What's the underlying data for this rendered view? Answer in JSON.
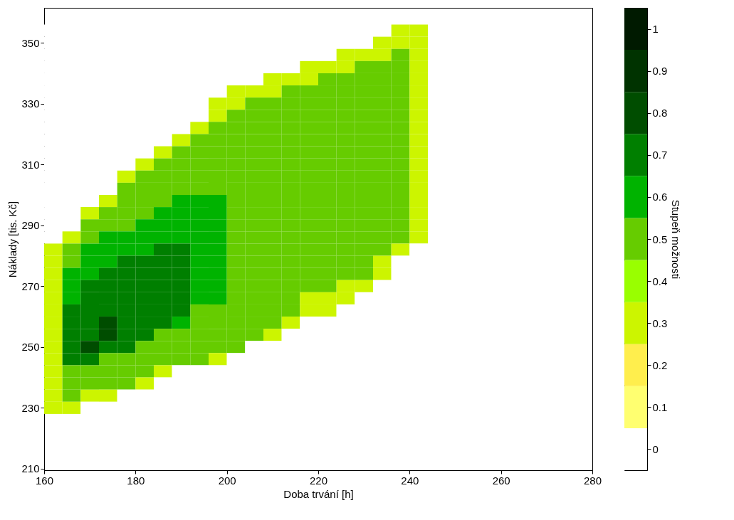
{
  "chart_data": {
    "type": "heatmap",
    "xlabel": "Doba trvání [h]",
    "ylabel": "Náklady [tis. Kč]",
    "clabel": "Stupeň možnosti",
    "x": [
      162,
      166,
      170,
      174,
      178,
      182,
      186,
      190,
      194,
      198,
      202,
      206,
      210,
      214,
      218,
      222,
      226,
      230,
      234,
      238,
      242,
      246
    ],
    "y": [
      354,
      350,
      346,
      342,
      338,
      334,
      330,
      326,
      322,
      318,
      314,
      310,
      306,
      302,
      298,
      294,
      290,
      286,
      282,
      278,
      274,
      270,
      266,
      262,
      258,
      254,
      250,
      246,
      242,
      238,
      234,
      230
    ],
    "cells": [
      [
        0,
        0,
        0,
        0,
        0,
        0,
        0,
        0,
        0,
        0,
        0,
        0,
        0,
        0,
        0,
        0,
        0,
        0,
        0,
        0.3,
        0.3,
        0
      ],
      [
        0,
        0,
        0,
        0,
        0,
        0,
        0,
        0,
        0,
        0,
        0,
        0,
        0,
        0,
        0,
        0,
        0,
        0,
        0.3,
        0.3,
        0.3,
        0
      ],
      [
        0,
        0,
        0,
        0,
        0,
        0,
        0,
        0,
        0,
        0,
        0,
        0,
        0,
        0,
        0,
        0,
        0.3,
        0.3,
        0.3,
        0.5,
        0.3,
        0
      ],
      [
        0,
        0,
        0,
        0,
        0,
        0,
        0,
        0,
        0,
        0,
        0,
        0,
        0,
        0,
        0.3,
        0.3,
        0.3,
        0.5,
        0.5,
        0.5,
        0.3,
        0
      ],
      [
        0,
        0,
        0,
        0,
        0,
        0,
        0,
        0,
        0,
        0,
        0,
        0,
        0.3,
        0.3,
        0.3,
        0.5,
        0.5,
        0.5,
        0.5,
        0.5,
        0.3,
        0
      ],
      [
        0,
        0,
        0,
        0,
        0,
        0,
        0,
        0,
        0,
        0,
        0.3,
        0.3,
        0.3,
        0.5,
        0.5,
        0.5,
        0.5,
        0.5,
        0.5,
        0.5,
        0.3,
        0
      ],
      [
        0,
        0,
        0,
        0,
        0,
        0,
        0,
        0,
        0,
        0.3,
        0.3,
        0.5,
        0.5,
        0.5,
        0.5,
        0.5,
        0.5,
        0.5,
        0.5,
        0.5,
        0.3,
        0
      ],
      [
        0,
        0,
        0,
        0,
        0,
        0,
        0,
        0,
        0,
        0.3,
        0.5,
        0.5,
        0.5,
        0.5,
        0.5,
        0.5,
        0.5,
        0.5,
        0.5,
        0.5,
        0.3,
        0
      ],
      [
        0,
        0,
        0,
        0,
        0,
        0,
        0,
        0,
        0.3,
        0.5,
        0.5,
        0.5,
        0.5,
        0.5,
        0.5,
        0.5,
        0.5,
        0.5,
        0.5,
        0.5,
        0.3,
        0
      ],
      [
        0,
        0,
        0,
        0,
        0,
        0,
        0,
        0.3,
        0.5,
        0.5,
        0.5,
        0.5,
        0.5,
        0.5,
        0.5,
        0.5,
        0.5,
        0.5,
        0.5,
        0.5,
        0.3,
        0
      ],
      [
        0,
        0,
        0,
        0,
        0,
        0,
        0.3,
        0.5,
        0.5,
        0.5,
        0.5,
        0.5,
        0.5,
        0.5,
        0.5,
        0.5,
        0.5,
        0.5,
        0.5,
        0.5,
        0.3,
        0
      ],
      [
        0,
        0,
        0,
        0,
        0,
        0.3,
        0.5,
        0.5,
        0.5,
        0.5,
        0.5,
        0.5,
        0.5,
        0.5,
        0.5,
        0.5,
        0.5,
        0.5,
        0.5,
        0.5,
        0.3,
        0
      ],
      [
        0,
        0,
        0,
        0,
        0.3,
        0.5,
        0.5,
        0.5,
        0.5,
        0.5,
        0.5,
        0.5,
        0.5,
        0.5,
        0.5,
        0.5,
        0.5,
        0.5,
        0.5,
        0.5,
        0.3,
        0
      ],
      [
        0,
        0,
        0,
        0,
        0.5,
        0.5,
        0.5,
        0.5,
        0.5,
        0.5,
        0.5,
        0.5,
        0.5,
        0.5,
        0.5,
        0.5,
        0.5,
        0.5,
        0.5,
        0.5,
        0.3,
        0
      ],
      [
        0,
        0,
        0,
        0.3,
        0.5,
        0.5,
        0.5,
        0.6,
        0.6,
        0.6,
        0.5,
        0.5,
        0.5,
        0.5,
        0.5,
        0.5,
        0.5,
        0.5,
        0.5,
        0.5,
        0.3,
        0
      ],
      [
        0,
        0,
        0.3,
        0.5,
        0.5,
        0.5,
        0.6,
        0.6,
        0.6,
        0.6,
        0.5,
        0.5,
        0.5,
        0.5,
        0.5,
        0.5,
        0.5,
        0.5,
        0.5,
        0.5,
        0.3,
        0
      ],
      [
        0,
        0,
        0.5,
        0.5,
        0.5,
        0.6,
        0.6,
        0.6,
        0.6,
        0.6,
        0.5,
        0.5,
        0.5,
        0.5,
        0.5,
        0.5,
        0.5,
        0.5,
        0.5,
        0.5,
        0.3,
        0
      ],
      [
        0,
        0.3,
        0.5,
        0.6,
        0.6,
        0.6,
        0.6,
        0.6,
        0.6,
        0.6,
        0.5,
        0.5,
        0.5,
        0.5,
        0.5,
        0.5,
        0.5,
        0.5,
        0.5,
        0.5,
        0.3,
        0
      ],
      [
        0.3,
        0.5,
        0.6,
        0.6,
        0.6,
        0.6,
        0.7,
        0.7,
        0.6,
        0.6,
        0.5,
        0.5,
        0.5,
        0.5,
        0.5,
        0.5,
        0.5,
        0.5,
        0.5,
        0.3,
        0,
        0
      ],
      [
        0.3,
        0.5,
        0.6,
        0.6,
        0.7,
        0.7,
        0.7,
        0.7,
        0.6,
        0.6,
        0.5,
        0.5,
        0.5,
        0.5,
        0.5,
        0.5,
        0.5,
        0.5,
        0.3,
        0,
        0,
        0
      ],
      [
        0.3,
        0.6,
        0.6,
        0.7,
        0.7,
        0.7,
        0.7,
        0.7,
        0.6,
        0.6,
        0.5,
        0.5,
        0.5,
        0.5,
        0.5,
        0.5,
        0.5,
        0.5,
        0.3,
        0,
        0,
        0
      ],
      [
        0.3,
        0.6,
        0.7,
        0.7,
        0.7,
        0.7,
        0.7,
        0.7,
        0.6,
        0.6,
        0.5,
        0.5,
        0.5,
        0.5,
        0.5,
        0.5,
        0.3,
        0.3,
        0,
        0,
        0,
        0
      ],
      [
        0.3,
        0.6,
        0.7,
        0.7,
        0.7,
        0.7,
        0.7,
        0.7,
        0.6,
        0.6,
        0.5,
        0.5,
        0.5,
        0.5,
        0.3,
        0.3,
        0.3,
        0,
        0,
        0,
        0,
        0
      ],
      [
        0.3,
        0.7,
        0.7,
        0.7,
        0.7,
        0.7,
        0.7,
        0.7,
        0.5,
        0.5,
        0.5,
        0.5,
        0.5,
        0.5,
        0.3,
        0.3,
        0,
        0,
        0,
        0,
        0,
        0
      ],
      [
        0.3,
        0.7,
        0.7,
        0.8,
        0.7,
        0.7,
        0.7,
        0.6,
        0.5,
        0.5,
        0.5,
        0.5,
        0.5,
        0.3,
        0,
        0,
        0,
        0,
        0,
        0,
        0,
        0
      ],
      [
        0.3,
        0.7,
        0.7,
        0.8,
        0.7,
        0.7,
        0.5,
        0.5,
        0.5,
        0.5,
        0.5,
        0.5,
        0.3,
        0,
        0,
        0,
        0,
        0,
        0,
        0,
        0,
        0
      ],
      [
        0.3,
        0.7,
        0.8,
        0.7,
        0.7,
        0.5,
        0.5,
        0.5,
        0.5,
        0.5,
        0.5,
        0,
        0,
        0,
        0,
        0,
        0,
        0,
        0,
        0,
        0,
        0
      ],
      [
        0.3,
        0.7,
        0.7,
        0.5,
        0.5,
        0.5,
        0.5,
        0.5,
        0.5,
        0.3,
        0,
        0,
        0,
        0,
        0,
        0,
        0,
        0,
        0,
        0,
        0,
        0
      ],
      [
        0.3,
        0.5,
        0.5,
        0.5,
        0.5,
        0.5,
        0.3,
        0,
        0,
        0,
        0,
        0,
        0,
        0,
        0,
        0,
        0,
        0,
        0,
        0,
        0,
        0
      ],
      [
        0.3,
        0.5,
        0.5,
        0.5,
        0.5,
        0.3,
        0,
        0,
        0,
        0,
        0,
        0,
        0,
        0,
        0,
        0,
        0,
        0,
        0,
        0,
        0,
        0
      ],
      [
        0.3,
        0.5,
        0.3,
        0.3,
        0,
        0,
        0,
        0,
        0,
        0,
        0,
        0,
        0,
        0,
        0,
        0,
        0,
        0,
        0,
        0,
        0,
        0
      ],
      [
        0.3,
        0.3,
        0,
        0,
        0,
        0,
        0,
        0,
        0,
        0,
        0,
        0,
        0,
        0,
        0,
        0,
        0,
        0,
        0,
        0,
        0,
        0
      ]
    ],
    "xlim": [
      160,
      280
    ],
    "xticks": [
      160,
      180,
      200,
      220,
      240,
      260,
      280
    ],
    "ylim": [
      209.5,
      361.5
    ],
    "yticks": [
      210,
      230,
      250,
      270,
      290,
      310,
      330,
      350
    ],
    "clim": [
      -0.05,
      1.05
    ],
    "cticks": [
      0,
      0.1,
      0.2,
      0.3,
      0.4,
      0.5,
      0.6,
      0.7,
      0.8,
      0.9,
      1
    ],
    "colors": [
      "#ffffff",
      "#ffff70",
      "#ffee4d",
      "#ccf500",
      "#99ff00",
      "#66cc00",
      "#00b300",
      "#007f00",
      "#004d00",
      "#003300",
      "#001a00"
    ],
    "grid": false
  }
}
